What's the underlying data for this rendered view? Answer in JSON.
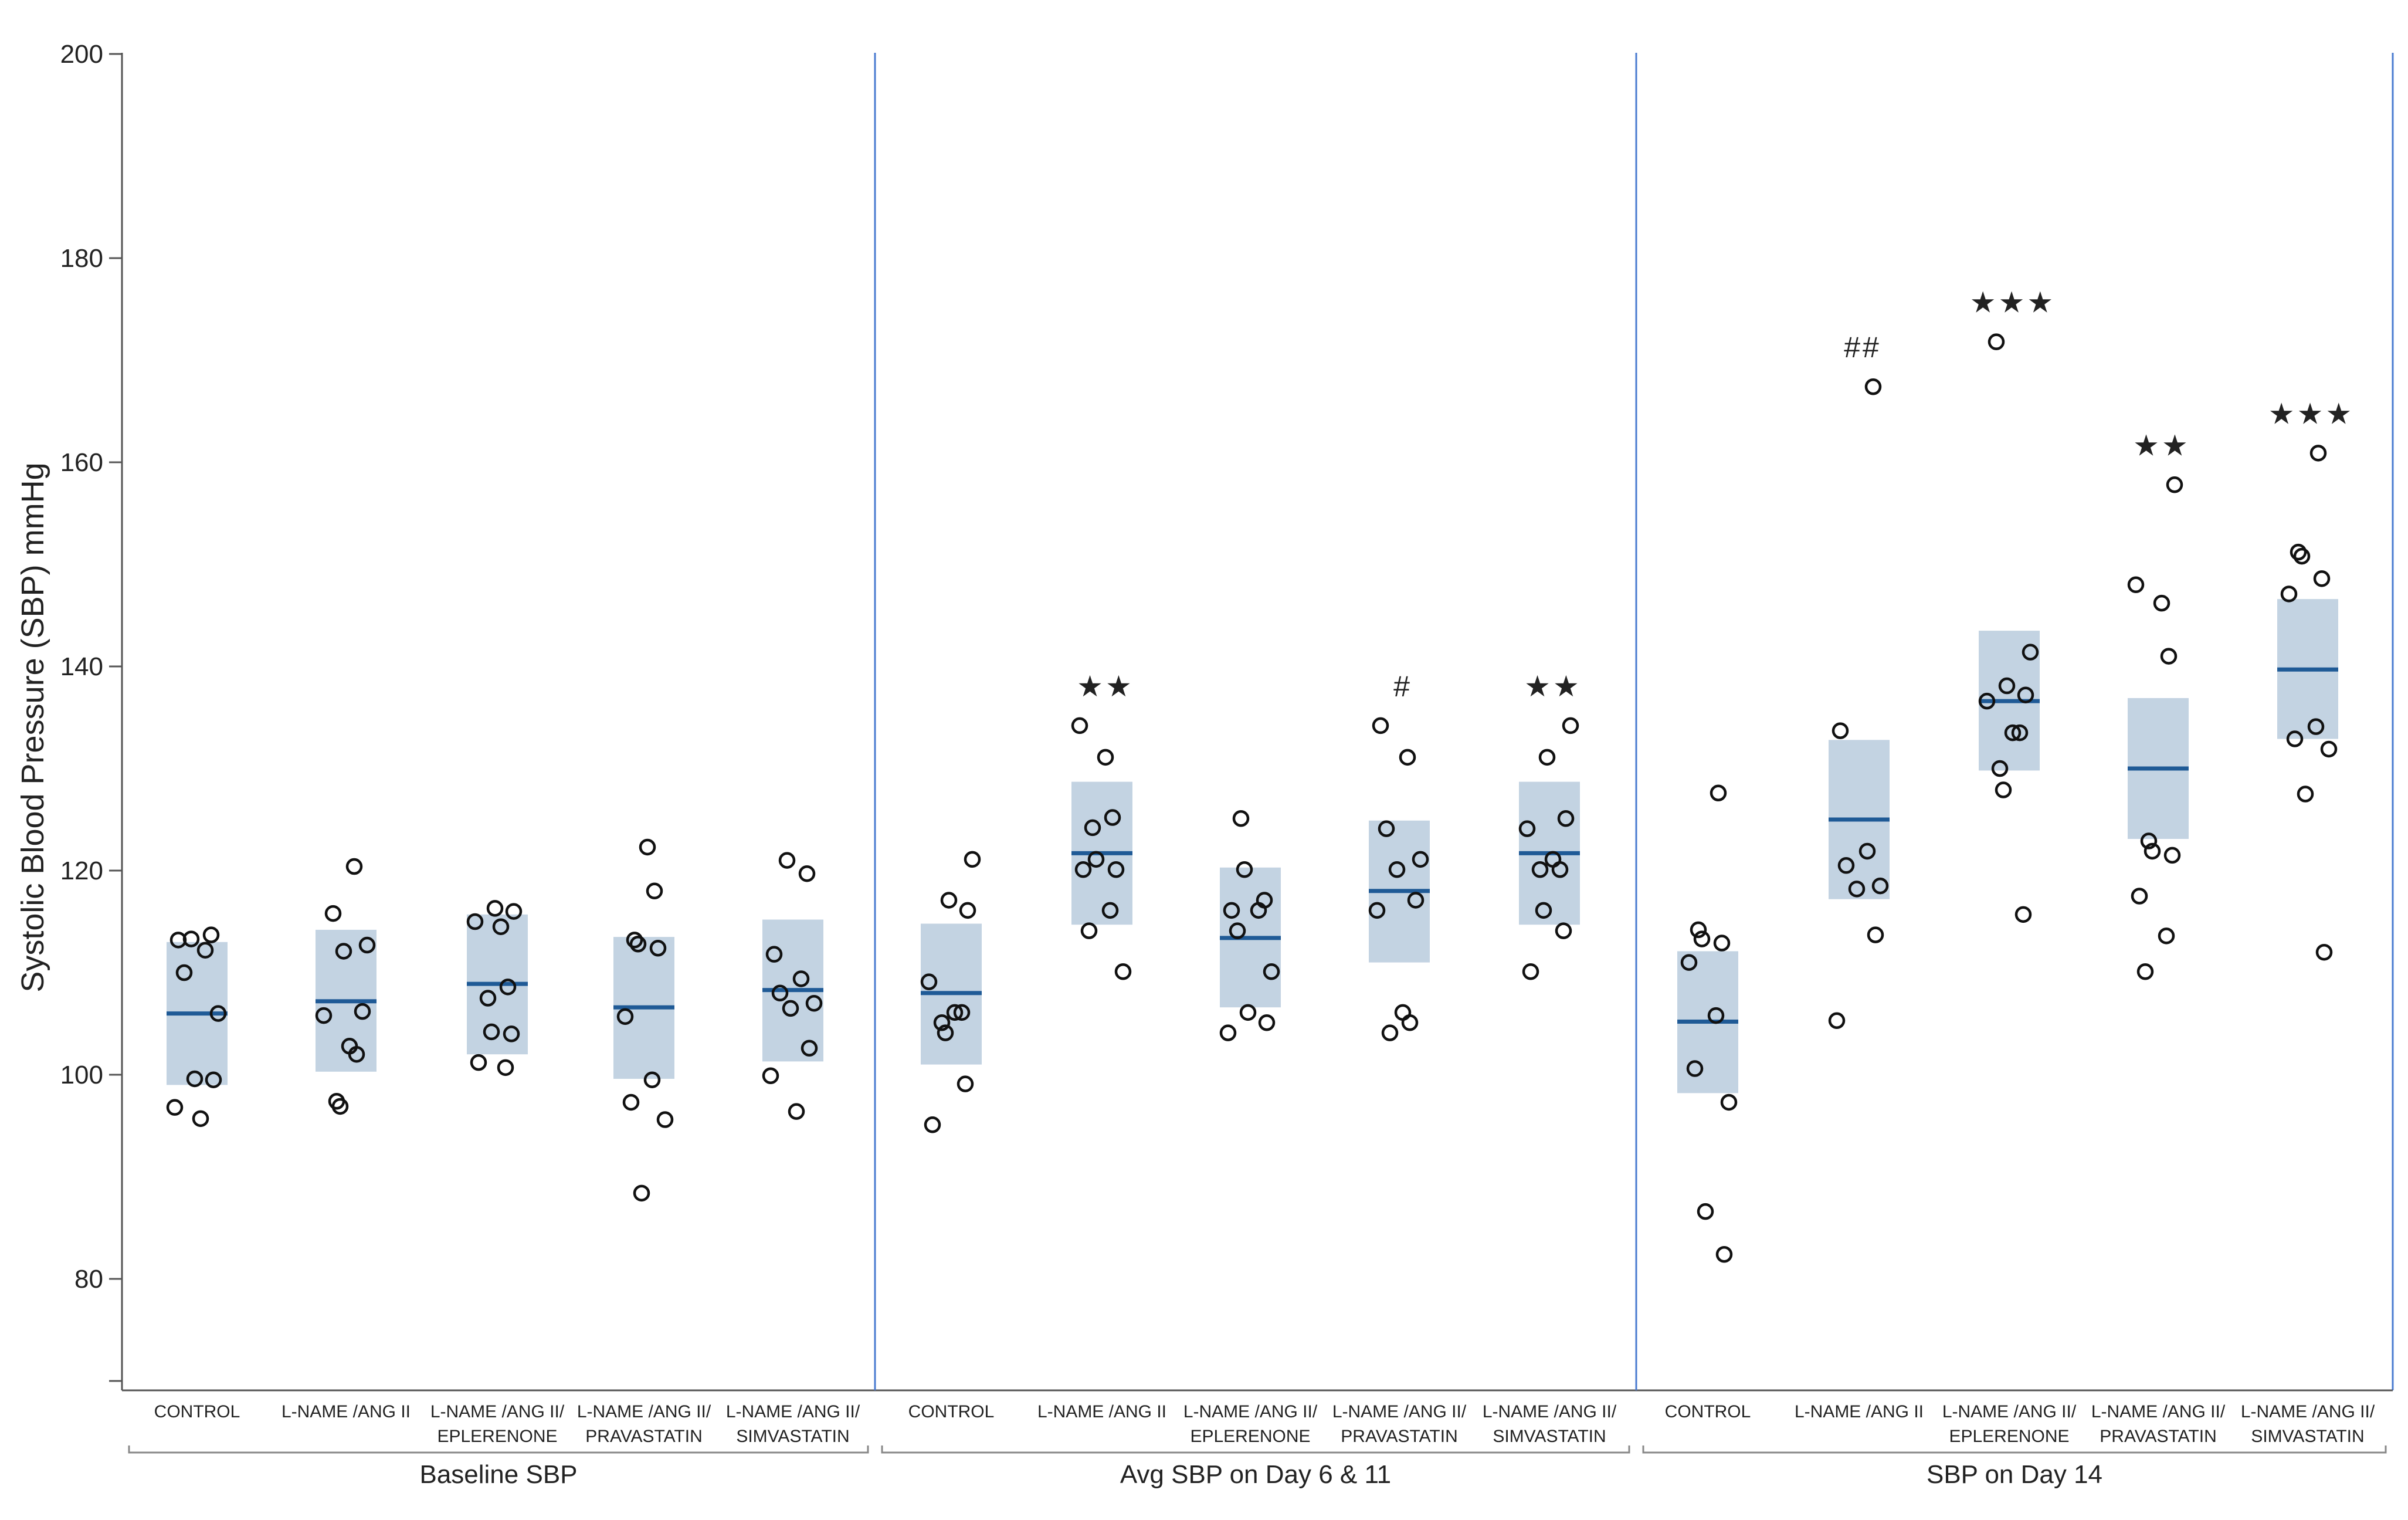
{
  "chart_data": {
    "type": "scatter",
    "title": "",
    "xlabel": "",
    "ylabel": "Systolic Blood Pressure (SBP) mmHg",
    "ylim": [
      70,
      200
    ],
    "yticks": [
      80,
      100,
      120,
      140,
      160,
      180,
      200
    ],
    "grid": false,
    "panels": [
      {
        "name": "Baseline SBP",
        "groups": [
          {
            "label": [
              "CONTROL"
            ],
            "median": 106,
            "q1": 99,
            "q3": 113,
            "annotation": "",
            "values": [
              113.3,
              113.7,
              113.2,
              112.2,
              110,
              106,
              99.6,
              99.5,
              96.8,
              95.7
            ]
          },
          {
            "label": [
              "L-NAME /ANG II"
            ],
            "median": 107.2,
            "q1": 100.3,
            "q3": 114.2,
            "annotation": "",
            "values": [
              120.4,
              115.8,
              112.7,
              112.1,
              106.2,
              105.8,
              102.8,
              102,
              97.4,
              96.9
            ]
          },
          {
            "label": [
              "L-NAME /ANG II/",
              "EPLERENONE"
            ],
            "median": 108.9,
            "q1": 102,
            "q3": 115.7,
            "annotation": "",
            "values": [
              116.3,
              116,
              115,
              114.5,
              108.6,
              107.5,
              104.2,
              104,
              101.2,
              100.7
            ]
          },
          {
            "label": [
              "L-NAME /ANG II/",
              "PRAVASTATIN"
            ],
            "median": 106.6,
            "q1": 99.6,
            "q3": 113.5,
            "annotation": "",
            "values": [
              122.3,
              118,
              113.2,
              112.8,
              112.4,
              105.7,
              99.5,
              97.3,
              95.6,
              88.4
            ]
          },
          {
            "label": [
              "L-NAME /ANG II/",
              "SIMVASTATIN"
            ],
            "median": 108.3,
            "q1": 101.3,
            "q3": 115.2,
            "annotation": "",
            "values": [
              121,
              119.7,
              111.8,
              109.4,
              108,
              107,
              106.5,
              102.6,
              99.9,
              96.4
            ]
          }
        ]
      },
      {
        "name": "Avg SBP on Day 6 & 11",
        "groups": [
          {
            "label": [
              "CONTROL"
            ],
            "median": 108,
            "q1": 101,
            "q3": 114.8,
            "annotation": "",
            "values": [
              121.1,
              117.1,
              116.1,
              109.1,
              106.1,
              106.1,
              105.1,
              104.1,
              99.1,
              95.1
            ]
          },
          {
            "label": [
              "L-NAME /ANG II"
            ],
            "median": 121.7,
            "q1": 114.7,
            "q3": 128.7,
            "annotation": "★★",
            "values": [
              134.2,
              131.1,
              125.2,
              124.2,
              121.1,
              120.1,
              120.1,
              116.1,
              114.1,
              110.1
            ]
          },
          {
            "label": [
              "L-NAME /ANG II/",
              "EPLERENONE"
            ],
            "median": 113.4,
            "q1": 106.6,
            "q3": 120.3,
            "annotation": "",
            "values": [
              125.1,
              120.1,
              117.1,
              116.1,
              116.1,
              114.1,
              110.1,
              106.1,
              105.1,
              104.1
            ]
          },
          {
            "label": [
              "L-NAME /ANG II/",
              "PRAVASTATIN"
            ],
            "median": 118,
            "q1": 111,
            "q3": 124.9,
            "annotation": "#",
            "values": [
              134.2,
              131.1,
              124.1,
              121.1,
              120.1,
              117.1,
              116.1,
              106.1,
              105.1,
              104.1
            ]
          },
          {
            "label": [
              "L-NAME /ANG II/",
              "SIMVASTATIN"
            ],
            "median": 121.7,
            "q1": 114.7,
            "q3": 128.7,
            "annotation": "★★",
            "values": [
              134.2,
              131.1,
              125.1,
              124.1,
              121.1,
              120.1,
              120.1,
              116.1,
              114.1,
              110.1
            ]
          }
        ]
      },
      {
        "name": "SBP on Day 14",
        "groups": [
          {
            "label": [
              "CONTROL"
            ],
            "median": 105.2,
            "q1": 98.2,
            "q3": 112.1,
            "annotation": "",
            "values": [
              127.6,
              114.2,
              113.3,
              112.9,
              111,
              105.8,
              100.6,
              97.3,
              86.6,
              82.4
            ]
          },
          {
            "label": [
              "L-NAME /ANG II"
            ],
            "median": 125,
            "q1": 117.2,
            "q3": 132.8,
            "annotation": "##",
            "values": [
              167.4,
              133.7,
              121.9,
              120.5,
              118.5,
              118.2,
              113.7,
              105.3
            ]
          },
          {
            "label": [
              "L-NAME /ANG II/",
              "EPLERENONE"
            ],
            "median": 136.6,
            "q1": 129.8,
            "q3": 143.5,
            "annotation": "★★★",
            "values": [
              171.8,
              141.4,
              138.1,
              137.2,
              136.6,
              133.5,
              133.5,
              130,
              127.9,
              115.7
            ]
          },
          {
            "label": [
              "L-NAME /ANG II/",
              "PRAVASTATIN"
            ],
            "median": 130,
            "q1": 123.1,
            "q3": 136.9,
            "annotation": "★★",
            "values": [
              157.8,
              148,
              146.2,
              141,
              122.9,
              121.9,
              121.5,
              117.5,
              113.6,
              110.1
            ]
          },
          {
            "label": [
              "L-NAME /ANG II/",
              "SIMVASTATIN"
            ],
            "median": 139.7,
            "q1": 132.9,
            "q3": 146.6,
            "annotation": "★★★",
            "values": [
              160.9,
              151.2,
              150.8,
              148.6,
              147.1,
              134.1,
              132.9,
              131.9,
              127.5,
              112
            ]
          }
        ]
      }
    ]
  }
}
